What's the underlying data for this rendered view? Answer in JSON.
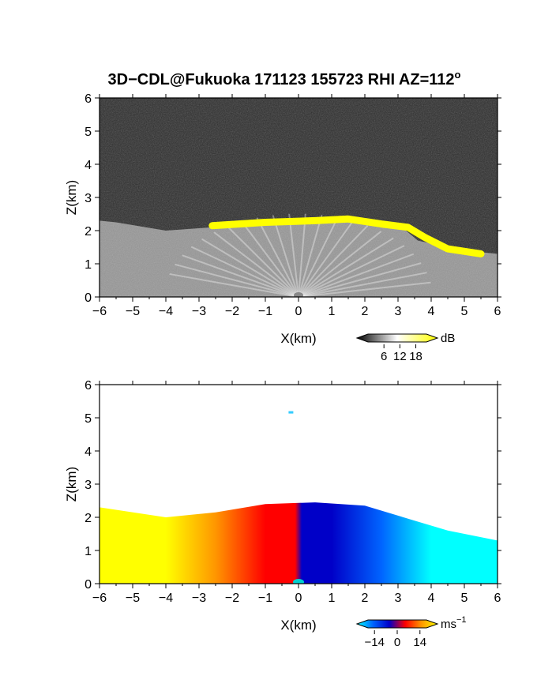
{
  "chart_data": [
    {
      "type": "heatmap",
      "title": "3D−CDL@Fukuoka 171123 155723 RHI AZ=112",
      "title_superscript": "o",
      "quantity": "dB",
      "xlabel": "X(km)",
      "ylabel": "Z(km)",
      "xlim": [
        -6,
        6
      ],
      "ylim": [
        0,
        6
      ],
      "x_ticks": [
        "−6",
        "−5",
        "−4",
        "−3",
        "−2",
        "−1",
        "0",
        "1",
        "2",
        "3",
        "4",
        "5",
        "6"
      ],
      "y_ticks": [
        "0",
        "1",
        "2",
        "3",
        "4",
        "5",
        "6"
      ],
      "grid": false,
      "background_color": "#2a2a2a",
      "echo_color": "#e6e6e6",
      "cloud_color": "#ffff00",
      "colorbar": {
        "unit": "dB",
        "ticks": [
          "6",
          "12",
          "18"
        ],
        "range": [
          0,
          22
        ],
        "colors": [
          "#000000",
          "#ffffff",
          "#ffff00"
        ]
      },
      "echo_top_km": [
        {
          "x": -6.0,
          "z": 2.3
        },
        {
          "x": -5.5,
          "z": 2.25
        },
        {
          "x": -4.0,
          "z": 2.0
        },
        {
          "x": -2.6,
          "z": 2.1
        },
        {
          "x": -1.2,
          "z": 2.25
        },
        {
          "x": 0.0,
          "z": 2.35
        },
        {
          "x": 1.0,
          "z": 2.4
        },
        {
          "x": 2.0,
          "z": 2.35
        },
        {
          "x": 3.0,
          "z": 2.2
        },
        {
          "x": 3.6,
          "z": 1.7
        },
        {
          "x": 5.0,
          "z": 1.4
        },
        {
          "x": 6.0,
          "z": 1.3
        }
      ],
      "cloud_layer_km": [
        {
          "x": -2.6,
          "z": 2.15
        },
        {
          "x": -1.0,
          "z": 2.25
        },
        {
          "x": 0.5,
          "z": 2.3
        },
        {
          "x": 1.5,
          "z": 2.35
        },
        {
          "x": 2.5,
          "z": 2.2
        },
        {
          "x": 3.3,
          "z": 2.1
        },
        {
          "x": 3.8,
          "z": 1.8
        },
        {
          "x": 4.5,
          "z": 1.45
        },
        {
          "x": 5.5,
          "z": 1.3
        }
      ]
    },
    {
      "type": "heatmap",
      "quantity": "radial velocity",
      "xlabel": "X(km)",
      "ylabel": "Z(km)",
      "xlim": [
        -6,
        6
      ],
      "ylim": [
        0,
        6
      ],
      "x_ticks": [
        "−6",
        "−5",
        "−4",
        "−3",
        "−2",
        "−1",
        "0",
        "1",
        "2",
        "3",
        "4",
        "5",
        "6"
      ],
      "y_ticks": [
        "0",
        "1",
        "2",
        "3",
        "4",
        "5",
        "6"
      ],
      "grid": false,
      "colorbar": {
        "unit": "ms",
        "unit_superscript": "−1",
        "ticks": [
          "−14",
          "0",
          "14"
        ],
        "range": [
          -18,
          18
        ],
        "colors": [
          "#00ffff",
          "#0064ff",
          "#0000c8",
          "#ff0000",
          "#ff9600",
          "#ffff00"
        ]
      },
      "velocity_ms": [
        {
          "x": -6.0,
          "v": 18
        },
        {
          "x": -4.0,
          "v": 16
        },
        {
          "x": -2.5,
          "v": 12
        },
        {
          "x": -1.0,
          "v": 6
        },
        {
          "x": -0.1,
          "v": 2
        },
        {
          "x": 0.1,
          "v": -2
        },
        {
          "x": 1.0,
          "v": -6
        },
        {
          "x": 2.5,
          "v": -11
        },
        {
          "x": 4.0,
          "v": -15
        },
        {
          "x": 6.0,
          "v": -17
        }
      ],
      "echo_top_km": [
        {
          "x": -6.0,
          "z": 2.3
        },
        {
          "x": -4.0,
          "z": 2.0
        },
        {
          "x": -2.5,
          "z": 2.15
        },
        {
          "x": -1.0,
          "z": 2.4
        },
        {
          "x": 0.5,
          "z": 2.45
        },
        {
          "x": 2.0,
          "z": 2.35
        },
        {
          "x": 3.5,
          "z": 1.9
        },
        {
          "x": 4.5,
          "z": 1.6
        },
        {
          "x": 6.0,
          "z": 1.3
        }
      ],
      "isolated_echo": {
        "x": -0.3,
        "z": 5.2
      }
    }
  ]
}
